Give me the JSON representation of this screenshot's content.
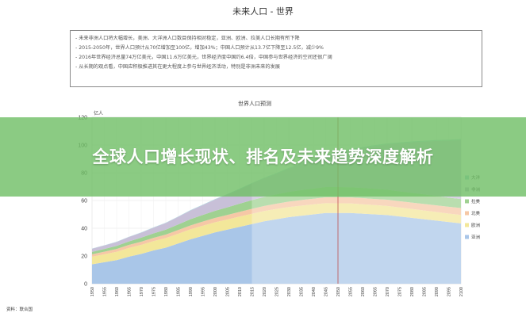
{
  "page": {
    "slide_title": "未来人口 - 世界",
    "notes": [
      "- 未来非洲人口将大幅增长，美洲、大洋洲人口数目保持相对稳定，亚洲、欧洲、拉美人口长期有所下降",
      "- 2015-2050年，世界人口预计从70亿增加至100亿，增加43%；中国人口预计从13.7亿下降至12.5亿，减少9%",
      "- 2016年世界经济总量74万亿美元，中国11.6万亿美元，世界经济度中国约6.4倍，中国参与世界经济的空间还很广阔",
      "- 从长期的观点看，中国应积极推进其在更大程度上参与世界经济活动，特别是非洲未来的发展"
    ],
    "source": "资料：联合国",
    "banner_title": "全球人口增长现状、排名及未来趋势深度解析"
  },
  "chart_data": {
    "type": "area",
    "title": "世界人口预测",
    "ylabel": "亿人",
    "xlabel": "",
    "ylim": [
      0,
      120
    ],
    "yticks": [
      0,
      20,
      40,
      60,
      80,
      100,
      120
    ],
    "x": [
      1950,
      1955,
      1960,
      1965,
      1970,
      1975,
      1980,
      1985,
      1990,
      1995,
      2000,
      2005,
      2010,
      2015,
      2020,
      2025,
      2030,
      2035,
      2040,
      2045,
      2050,
      2055,
      2060,
      2065,
      2070,
      2075,
      2080,
      2085,
      2090,
      2095,
      2100
    ],
    "xticks": [
      "1950",
      "1955",
      "1960",
      "1965",
      "1970",
      "1975",
      "1980",
      "1985",
      "1990",
      "1995",
      "2000",
      "2005",
      "2010",
      "2015",
      "2020",
      "2025",
      "2030",
      "2035",
      "2040",
      "2045",
      "2050",
      "2055",
      "2060",
      "2065",
      "2070",
      "2075",
      "2080",
      "2085",
      "2090",
      "2095",
      "2100"
    ],
    "projection_start": 2015,
    "marker_year": 2050,
    "grid": true,
    "legend_position": "right",
    "series": [
      {
        "name": "亚洲",
        "color": "#a9c6e8",
        "values": [
          14,
          15.5,
          17,
          19.5,
          21.5,
          24,
          26,
          29,
          32,
          34.5,
          37,
          39,
          41,
          43,
          45,
          46.5,
          48,
          49,
          50,
          51,
          51,
          51,
          50.5,
          50,
          49.5,
          48.5,
          47.5,
          46.5,
          45.5,
          44.5,
          43.5
        ]
      },
      {
        "name": "欧洲",
        "color": "#f3e79a",
        "values": [
          5.5,
          5.7,
          6,
          6.3,
          6.5,
          6.7,
          6.9,
          7,
          7.2,
          7.3,
          7.3,
          7.3,
          7.4,
          7.4,
          7.4,
          7.4,
          7.3,
          7.3,
          7.2,
          7.1,
          7,
          6.9,
          6.8,
          6.7,
          6.6,
          6.5,
          6.4,
          6.3,
          6.2,
          6.1,
          6.1
        ]
      },
      {
        "name": "北美",
        "color": "#f6c8a6",
        "values": [
          1.7,
          1.9,
          2.1,
          2.2,
          2.3,
          2.4,
          2.5,
          2.7,
          2.8,
          3,
          3.1,
          3.3,
          3.4,
          3.6,
          3.7,
          3.8,
          3.9,
          4,
          4.1,
          4.2,
          4.3,
          4.3,
          4.4,
          4.4,
          4.5,
          4.5,
          4.6,
          4.7,
          4.8,
          4.9,
          5
        ]
      },
      {
        "name": "拉美",
        "color": "#9fd191",
        "values": [
          1.7,
          2,
          2.2,
          2.5,
          2.9,
          3.2,
          3.6,
          4,
          4.5,
          4.8,
          5.2,
          5.5,
          5.9,
          6.3,
          6.5,
          6.7,
          7,
          7.2,
          7.3,
          7.4,
          7.4,
          7.4,
          7.4,
          7.3,
          7.2,
          7.1,
          7,
          6.9,
          6.8,
          6.6,
          6.5
        ]
      },
      {
        "name": "非洲",
        "color": "#c8c0d8",
        "values": [
          2.3,
          2.5,
          2.8,
          3.2,
          3.6,
          4.1,
          4.8,
          5.5,
          6.3,
          7.1,
          8.1,
          9.2,
          10.4,
          11.9,
          13.4,
          14.9,
          16.8,
          18.7,
          20.7,
          22.7,
          24.8,
          26.8,
          28.9,
          30.9,
          32.7,
          34.6,
          36.4,
          38,
          39.6,
          41,
          42.5
        ]
      },
      {
        "name": "大洋",
        "color": "#a8d8e0",
        "values": [
          0.13,
          0.14,
          0.16,
          0.18,
          0.2,
          0.21,
          0.23,
          0.25,
          0.27,
          0.29,
          0.31,
          0.34,
          0.37,
          0.4,
          0.43,
          0.46,
          0.48,
          0.51,
          0.53,
          0.55,
          0.57,
          0.59,
          0.61,
          0.62,
          0.64,
          0.65,
          0.66,
          0.67,
          0.68,
          0.69,
          0.7
        ]
      }
    ]
  }
}
